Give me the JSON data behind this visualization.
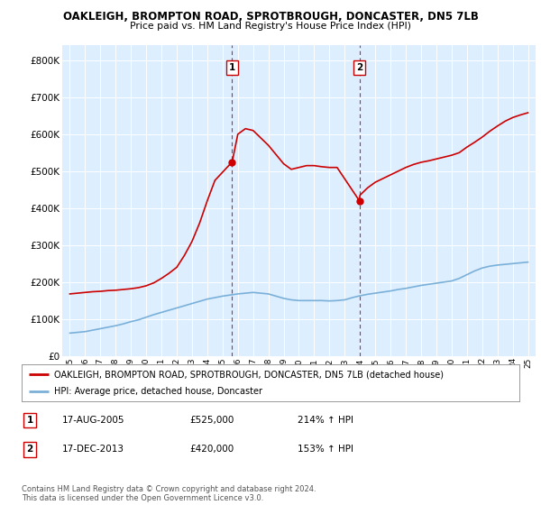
{
  "title": "OAKLEIGH, BROMPTON ROAD, SPROTBROUGH, DONCASTER, DN5 7LB",
  "subtitle": "Price paid vs. HM Land Registry's House Price Index (HPI)",
  "legend_line1": "OAKLEIGH, BROMPTON ROAD, SPROTBROUGH, DONCASTER, DN5 7LB (detached house)",
  "legend_line2": "HPI: Average price, detached house, Doncaster",
  "sale1_date": "17-AUG-2005",
  "sale1_price": "£525,000",
  "sale1_hpi": "214% ↑ HPI",
  "sale2_date": "17-DEC-2013",
  "sale2_price": "£420,000",
  "sale2_hpi": "153% ↑ HPI",
  "footnote": "Contains HM Land Registry data © Crown copyright and database right 2024.\nThis data is licensed under the Open Government Licence v3.0.",
  "xlim": [
    1994.5,
    2025.5
  ],
  "ylim": [
    0,
    840000
  ],
  "background_color": "#ddeeff",
  "red_color": "#cc0000",
  "blue_color": "#7ab0d8",
  "sale1_x": 2005.63,
  "sale1_y": 525000,
  "sale2_x": 2013.96,
  "sale2_y": 420000,
  "vline1_x": 2005.63,
  "vline2_x": 2013.96,
  "red_years": [
    1995,
    1995.5,
    1996,
    1996.5,
    1997,
    1997.5,
    1998,
    1998.5,
    1999,
    1999.5,
    2000,
    2000.5,
    2001,
    2001.5,
    2002,
    2002.5,
    2003,
    2003.5,
    2004,
    2004.5,
    2005.63,
    2006,
    2006.5,
    2007,
    2007.5,
    2008,
    2008.5,
    2009,
    2009.5,
    2010,
    2010.5,
    2011,
    2011.5,
    2012,
    2012.5,
    2013.96,
    2014,
    2014.5,
    2015,
    2015.5,
    2016,
    2016.5,
    2017,
    2017.5,
    2018,
    2018.5,
    2019,
    2019.5,
    2020,
    2020.5,
    2021,
    2021.5,
    2022,
    2022.5,
    2023,
    2023.5,
    2024,
    2024.5,
    2025
  ],
  "red_values": [
    168000,
    170000,
    172000,
    174000,
    175000,
    177000,
    178000,
    180000,
    182000,
    185000,
    190000,
    198000,
    210000,
    224000,
    240000,
    272000,
    310000,
    360000,
    420000,
    475000,
    525000,
    600000,
    615000,
    610000,
    590000,
    570000,
    545000,
    520000,
    505000,
    510000,
    515000,
    515000,
    512000,
    510000,
    510000,
    420000,
    435000,
    455000,
    470000,
    480000,
    490000,
    500000,
    510000,
    518000,
    524000,
    528000,
    533000,
    538000,
    543000,
    550000,
    565000,
    578000,
    592000,
    608000,
    622000,
    635000,
    645000,
    652000,
    658000
  ],
  "blue_years": [
    1995,
    1995.5,
    1996,
    1996.5,
    1997,
    1997.5,
    1998,
    1998.5,
    1999,
    1999.5,
    2000,
    2000.5,
    2001,
    2001.5,
    2002,
    2002.5,
    2003,
    2003.5,
    2004,
    2004.5,
    2005,
    2005.5,
    2006,
    2006.5,
    2007,
    2007.5,
    2008,
    2008.5,
    2009,
    2009.5,
    2010,
    2010.5,
    2011,
    2011.5,
    2012,
    2012.5,
    2013,
    2013.5,
    2014,
    2014.5,
    2015,
    2015.5,
    2016,
    2016.5,
    2017,
    2017.5,
    2018,
    2018.5,
    2019,
    2019.5,
    2020,
    2020.5,
    2021,
    2021.5,
    2022,
    2022.5,
    2023,
    2023.5,
    2024,
    2024.5,
    2025
  ],
  "blue_values": [
    62000,
    64000,
    66000,
    70000,
    74000,
    78000,
    82000,
    87000,
    93000,
    98000,
    105000,
    112000,
    118000,
    124000,
    130000,
    136000,
    142000,
    148000,
    154000,
    158000,
    162000,
    165000,
    168000,
    170000,
    172000,
    170000,
    168000,
    162000,
    156000,
    152000,
    150000,
    150000,
    150000,
    150000,
    149000,
    150000,
    152000,
    158000,
    163000,
    167000,
    170000,
    173000,
    176000,
    180000,
    183000,
    187000,
    191000,
    194000,
    197000,
    200000,
    203000,
    210000,
    220000,
    230000,
    238000,
    243000,
    246000,
    248000,
    250000,
    252000,
    254000
  ]
}
